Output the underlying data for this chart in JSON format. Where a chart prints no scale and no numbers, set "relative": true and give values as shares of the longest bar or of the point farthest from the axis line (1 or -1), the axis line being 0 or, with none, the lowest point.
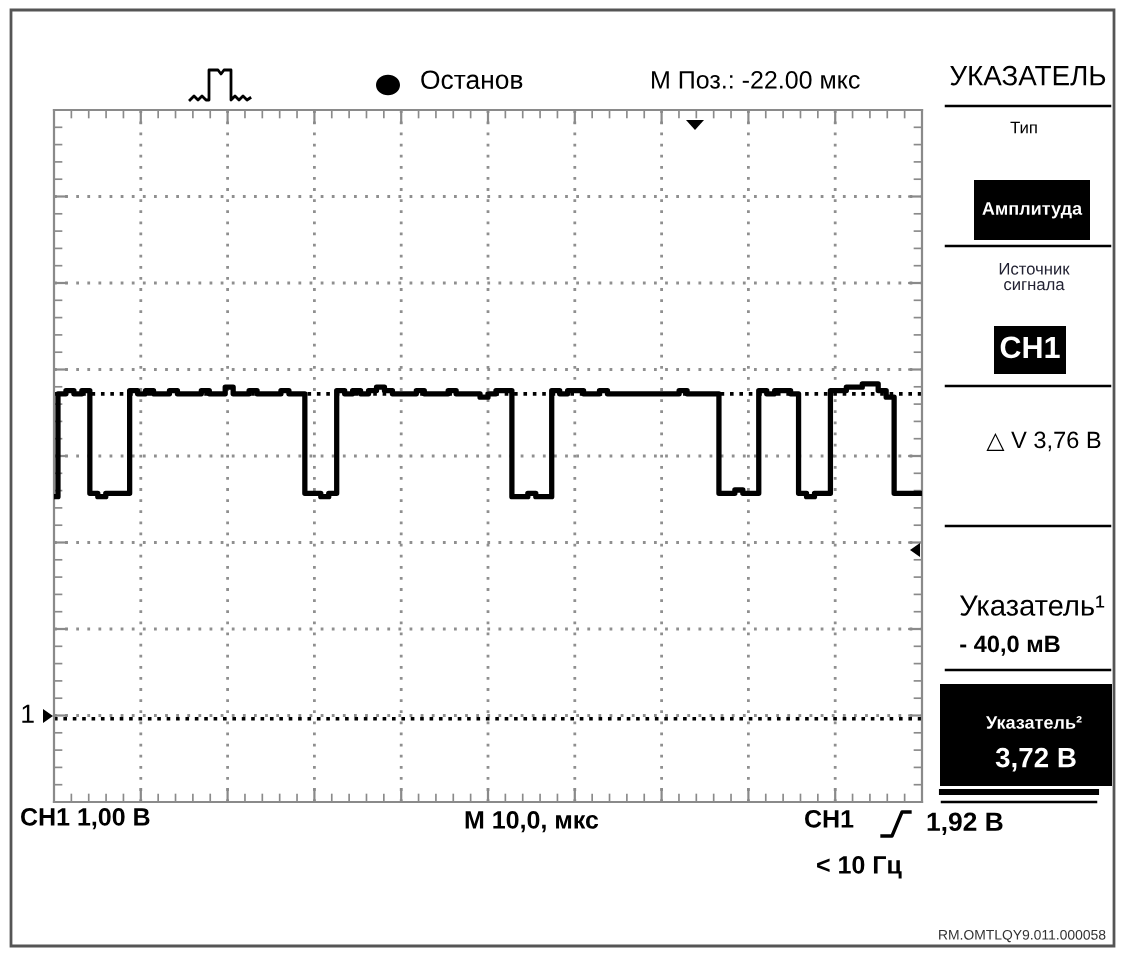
{
  "chart_data": {
    "type": "step",
    "relative": true,
    "categories": [
      null,
      null,
      null,
      null,
      null,
      null,
      null,
      null,
      null,
      null,
      null,
      null,
      null,
      null,
      null,
      null,
      null,
      null,
      null,
      null,
      null,
      null,
      null,
      null,
      null,
      null,
      null,
      null,
      null,
      null,
      null,
      null,
      null,
      null,
      null,
      null,
      null,
      null,
      null,
      null,
      null,
      null,
      null,
      null,
      null,
      null,
      null,
      null,
      null,
      null,
      null,
      null,
      null,
      null,
      null,
      null,
      null,
      null,
      null,
      null,
      null,
      null,
      null,
      null,
      null,
      null,
      null,
      null,
      null,
      null,
      null,
      null,
      null,
      null,
      null,
      null,
      null,
      null,
      null,
      null,
      null,
      null,
      null,
      null,
      null,
      null,
      null,
      null,
      null,
      null,
      null,
      null,
      null,
      null,
      null,
      null,
      null,
      null,
      null,
      null,
      null,
      null,
      null,
      null,
      null,
      null,
      null,
      null,
      null,
      null
    ],
    "series": [
      {
        "color": "#000000",
        "values": [
          0.66,
          0.97,
          0.98,
          0.97,
          0.98,
          0.67,
          0.66,
          0.67,
          0.67,
          0.67,
          0.98,
          0.97,
          0.98,
          0.97,
          0.97,
          0.98,
          0.97,
          0.97,
          0.97,
          0.98,
          0.97,
          0.97,
          0.99,
          0.97,
          0.97,
          0.98,
          0.97,
          0.97,
          0.97,
          0.98,
          0.97,
          0.97,
          0.67,
          0.67,
          0.66,
          0.67,
          0.98,
          0.97,
          0.98,
          0.97,
          0.98,
          0.99,
          0.98,
          0.97,
          0.97,
          0.97,
          0.98,
          0.97,
          0.97,
          0.97,
          0.98,
          0.97,
          0.97,
          0.97,
          0.96,
          0.97,
          0.98,
          0.98,
          0.66,
          0.66,
          0.67,
          0.66,
          0.66,
          0.98,
          0.97,
          0.98,
          0.98,
          0.97,
          0.97,
          0.98,
          0.97,
          0.97,
          0.97,
          0.97,
          0.97,
          0.97,
          0.97,
          0.97,
          0.97,
          0.98,
          0.97,
          0.97,
          0.97,
          0.97,
          0.67,
          0.67,
          0.68,
          0.67,
          0.67,
          0.98,
          0.97,
          0.98,
          0.98,
          0.97,
          0.67,
          0.66,
          0.67,
          0.67,
          0.98,
          0.98,
          0.99,
          0.99,
          1.0,
          1.0,
          0.98,
          0.96,
          0.67,
          0.67,
          0.67,
          0.67
        ]
      }
    ],
    "ref_lines": [
      {
        "axis": "y",
        "value": 0.97,
        "line_style": "dotted",
        "color": "#000000"
      },
      {
        "axis": "y",
        "value": -0.01,
        "line_style": "dotted",
        "color": "#000000"
      }
    ],
    "annotations": [
      "Останов",
      "M Поз.: -22.00 мкс",
      "УКАЗАТЕЛЬ",
      "Тип",
      "Амплитуда",
      "Источник\nсигнала",
      "CH1",
      "△ V 3,76 В",
      "Указатель¹",
      "- 40,0 мВ",
      "Указатель²",
      "3,72 В",
      "CH1 1,00 В",
      "M 10,0, мкс",
      "CH1",
      "1,92 В",
      "< 10 Гц",
      "RM.OMTLQY9.011.000058",
      "1"
    ],
    "grid": true,
    "tick_labels": false
  }
}
